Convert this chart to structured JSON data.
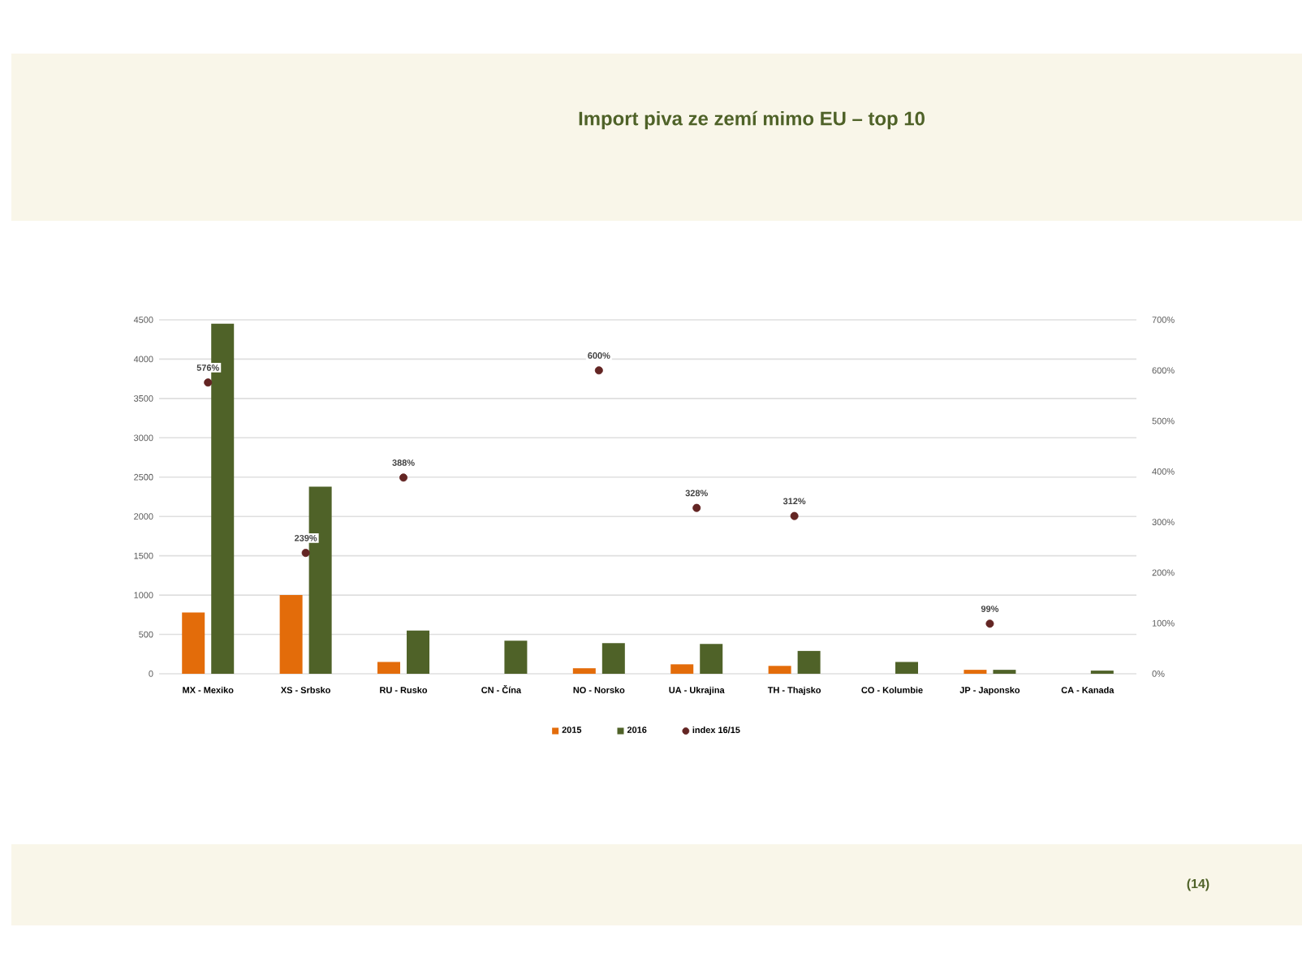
{
  "chart_data": {
    "type": "bar",
    "title": "Import piva ze zemí mimo EU – top 10",
    "categories": [
      "MX - Mexiko",
      "XS - Srbsko",
      "RU - Rusko",
      "CN - Čína",
      "NO - Norsko",
      "UA - Ukrajina",
      "TH - Thajsko",
      "CO - Kolumbie",
      "JP - Japonsko",
      "CA - Kanada"
    ],
    "series": [
      {
        "name": "2015",
        "color": "#e36c0a",
        "values": [
          780,
          1000,
          150,
          null,
          70,
          120,
          100,
          null,
          50,
          null
        ]
      },
      {
        "name": "2016",
        "color": "#4f6228",
        "values": [
          4450,
          2380,
          550,
          420,
          390,
          380,
          290,
          150,
          50,
          40
        ]
      },
      {
        "name": "index 16/15",
        "type": "scatter",
        "axis": "y2",
        "color": "#632523",
        "values": [
          576,
          239,
          388,
          null,
          600,
          328,
          312,
          null,
          99,
          null
        ],
        "value_labels": [
          "576%",
          "239%",
          "388%",
          null,
          "600%",
          "328%",
          "312%",
          null,
          "99%",
          null
        ]
      }
    ],
    "ylim": [
      0,
      4500
    ],
    "yticks": [
      0,
      500,
      1000,
      1500,
      2000,
      2500,
      3000,
      3500,
      4000,
      4500
    ],
    "y2lim": [
      0,
      700
    ],
    "y2ticks": [
      {
        "value": 0,
        "label": "0%"
      },
      {
        "value": 100,
        "label": "100%"
      },
      {
        "value": 200,
        "label": "200%"
      },
      {
        "value": 300,
        "label": "300%"
      },
      {
        "value": 400,
        "label": "400%"
      },
      {
        "value": 500,
        "label": "500%"
      },
      {
        "value": 600,
        "label": "600%"
      },
      {
        "value": 700,
        "label": "700%"
      }
    ],
    "grid": "y",
    "legend": "bottom",
    "annotations": [
      "(14)"
    ]
  }
}
